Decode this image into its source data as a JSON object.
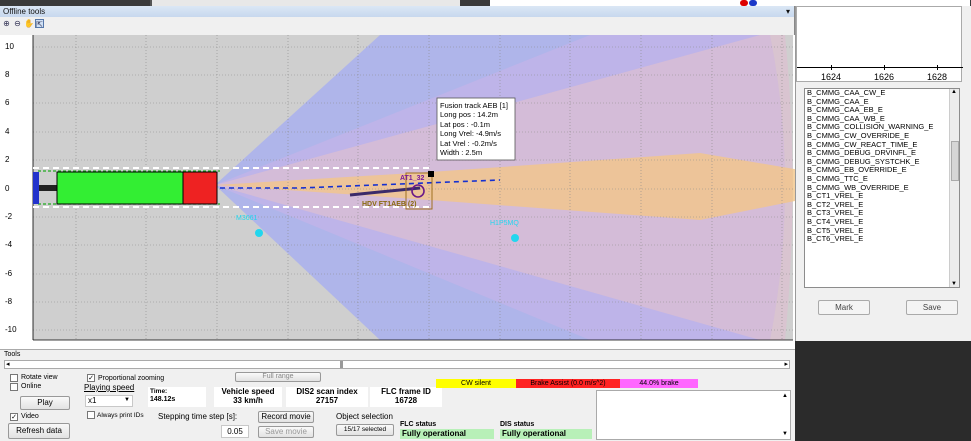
{
  "window_title": "Offline tools",
  "plot": {
    "y_ticks": [
      "10",
      "8",
      "6",
      "4",
      "2",
      "0",
      "-2",
      "-4",
      "-6",
      "-8",
      "-10"
    ],
    "target_label": "AT1_32",
    "hdv_label": "HDV FT1AEB (2)",
    "obj_left_label": "M3661",
    "obj_right_label": "H1P5MQ",
    "tooltip": {
      "title": "Fusion track AEB [1]",
      "long_pos": "Long pos : 14.2m",
      "lat_pos": "Lat pos  : -0.1m",
      "long_vrel": "Long Vrel: -4.9m/s",
      "lat_vrel": "Lat Vrel : -0.2m/s",
      "width": "Width : 2.5m"
    }
  },
  "right_panel": {
    "ticks": [
      "1624",
      "1626",
      "1628"
    ],
    "signals": [
      "B_CMMG_CAA_CW_E",
      "B_CMMG_CAA_E",
      "B_CMMG_CAA_EB_E",
      "B_CMMG_CAA_WB_E",
      "B_CMMG_COLLISION_WARNING_E",
      "B_CMMG_CW_OVERRIDE_E",
      "B_CMMG_CW_REACT_TIME_E",
      "B_CMMG_DEBUG_DRVINFL_E",
      "B_CMMG_DEBUG_SYSTCHK_E",
      "B_CMMG_EB_OVERRIDE_E",
      "B_CMMG_TTC_E",
      "B_CMMG_WB_OVERRIDE_E",
      "B_CT1_VREL_E",
      "B_CT2_VREL_E",
      "B_CT3_VREL_E",
      "B_CT4_VREL_E",
      "B_CT5_VREL_E",
      "B_CT6_VREL_E"
    ],
    "mark_label": "Mark",
    "save_label": "Save"
  },
  "tools": {
    "section_label": "Tools",
    "rotate_view": "Rotate view",
    "online": "Online",
    "proportional_zooming": "Proportional zooming",
    "full_range": "Full range",
    "playing_speed": "Playing speed",
    "speed_value": "x1",
    "play": "Play",
    "video": "Video",
    "always_print_ids": "Always print IDs",
    "refresh_data": "Refresh data",
    "time_label": "Time:",
    "time_value": "148.12s",
    "vehicle_speed_label": "Vehicle speed",
    "vehicle_speed_value": "33 km/h",
    "dis2_label": "DIS2 scan index",
    "dis2_value": "27157",
    "flc_frame_label": "FLC frame ID",
    "flc_frame_value": "16728",
    "stepping_label": "Stepping time step [s]:",
    "stepping_value": "0.05",
    "record_movie": "Record movie",
    "save_movie": "Save movie",
    "object_selection": "Object selection",
    "selected": "15/17 selected",
    "cw_silent": "CW silent",
    "brake_assist": "Brake Assist (0.0 m/s^2)",
    "brake_pct": "44.0% brake",
    "flc_status_label": "FLC status",
    "flc_status_value": "Fully operational",
    "dis_status_label": "DIS status",
    "dis_status_value": "Fully operational"
  },
  "colors": {
    "cw_silent": "#ffff00",
    "brake_assist": "#ff2222",
    "brake_pct": "#ff66ff",
    "status_ok": "#b8f0b8",
    "truck_cab": "#ee2222",
    "truck_trailer": "#33ee33"
  }
}
